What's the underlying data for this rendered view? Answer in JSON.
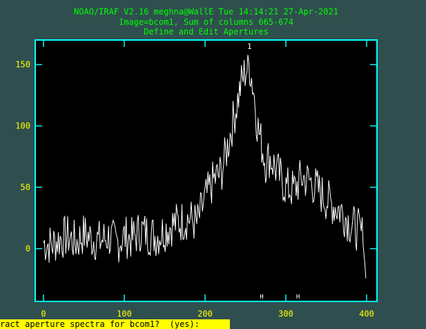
{
  "window": {
    "title_line1": "NOAO/IRAF V2.16 meghna@WallE Tue 14:14:21 27-Apr-2021",
    "title_line2": "Image=bcom1, Sum of columns 665-674",
    "title_line3": "Define and Edit Apertures"
  },
  "status": {
    "prompt": "ract aperture spectra for bcom1?  (yes): "
  },
  "colors": {
    "background": "#2f4f4f",
    "plot_background": "#000000",
    "frame": "#00ffff",
    "tick_labels": "#ffff00",
    "title_text": "#00ff00",
    "spectrum": "#ffffff",
    "status_bar": "#ffff00"
  },
  "chart_data": {
    "type": "line",
    "title": "Define and Edit Apertures",
    "xlabel": "",
    "ylabel": "",
    "xlim": [
      0,
      400
    ],
    "ylim": [
      -43,
      170
    ],
    "xticks": [
      "0",
      "100",
      "200",
      "300",
      "400"
    ],
    "yticks": [
      "0",
      "50",
      "100",
      "150"
    ],
    "aperture": {
      "label": "1",
      "center": 255,
      "lower": 270,
      "upper": 315,
      "marker": "H"
    },
    "series": [
      {
        "x": [
          0,
          10,
          20,
          30,
          40,
          50,
          60,
          70,
          80,
          90,
          100,
          110,
          120,
          130,
          140,
          150,
          160,
          170,
          180,
          190,
          200,
          210,
          220,
          225,
          230,
          235,
          240,
          245,
          250,
          255,
          260,
          265,
          270,
          275,
          280,
          290,
          300,
          310,
          320,
          330,
          340,
          350,
          360,
          370,
          380,
          390,
          395,
          400
        ],
        "values": [
          5,
          3,
          8,
          10,
          5,
          12,
          8,
          6,
          10,
          4,
          10,
          8,
          15,
          12,
          10,
          15,
          20,
          22,
          25,
          20,
          40,
          55,
          62,
          75,
          90,
          105,
          120,
          135,
          145,
          150,
          130,
          100,
          85,
          70,
          75,
          62,
          50,
          48,
          58,
          55,
          48,
          40,
          35,
          30,
          20,
          15,
          10,
          -30
        ]
      }
    ]
  }
}
